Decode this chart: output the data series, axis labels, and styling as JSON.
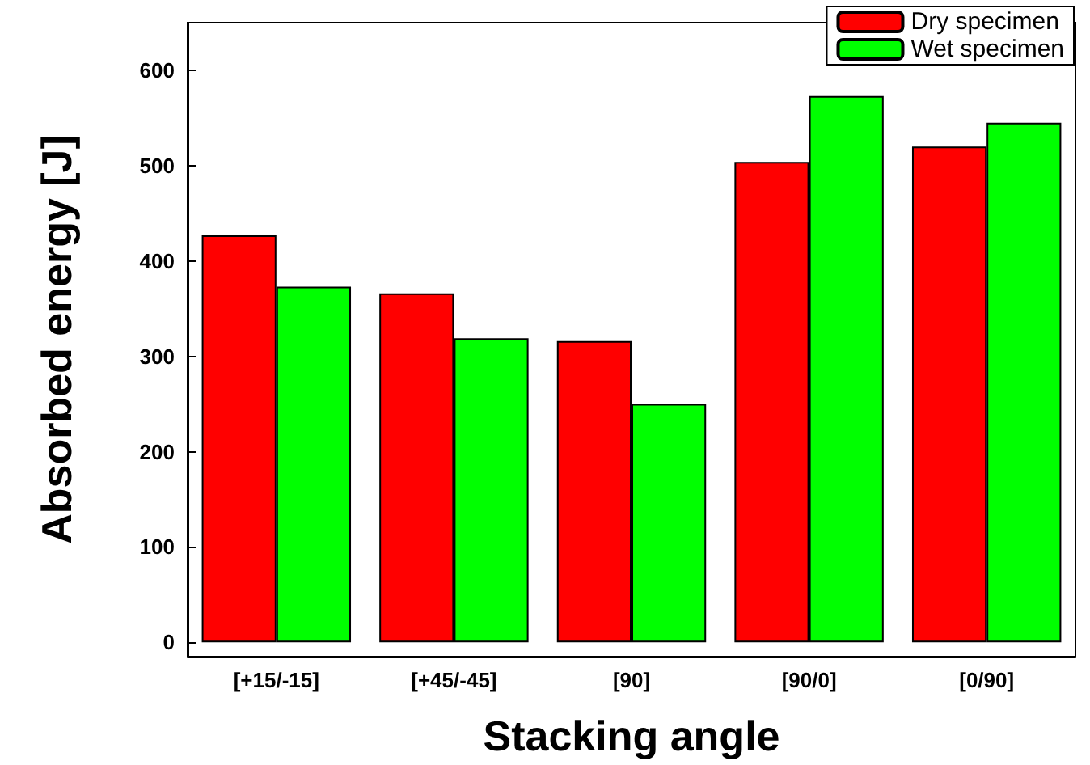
{
  "chart_data": {
    "type": "bar",
    "xlabel": "Stacking angle",
    "ylabel": "Absorbed energy [J]",
    "categories": [
      "[+15/-15]",
      "[+45/-45]",
      "[90]",
      "[90/0]",
      "[0/90]"
    ],
    "series": [
      {
        "name": "Dry specimen",
        "color": "#ff0000",
        "values": [
          427,
          366,
          316,
          504,
          520
        ]
      },
      {
        "name": "Wet specimen",
        "color": "#00ff00",
        "values": [
          373,
          319,
          250,
          573,
          545
        ]
      }
    ],
    "ylim": [
      -15,
      650
    ],
    "yticks": [
      0,
      100,
      200,
      300,
      400,
      500,
      600
    ],
    "grid": false,
    "legend": "top right"
  }
}
